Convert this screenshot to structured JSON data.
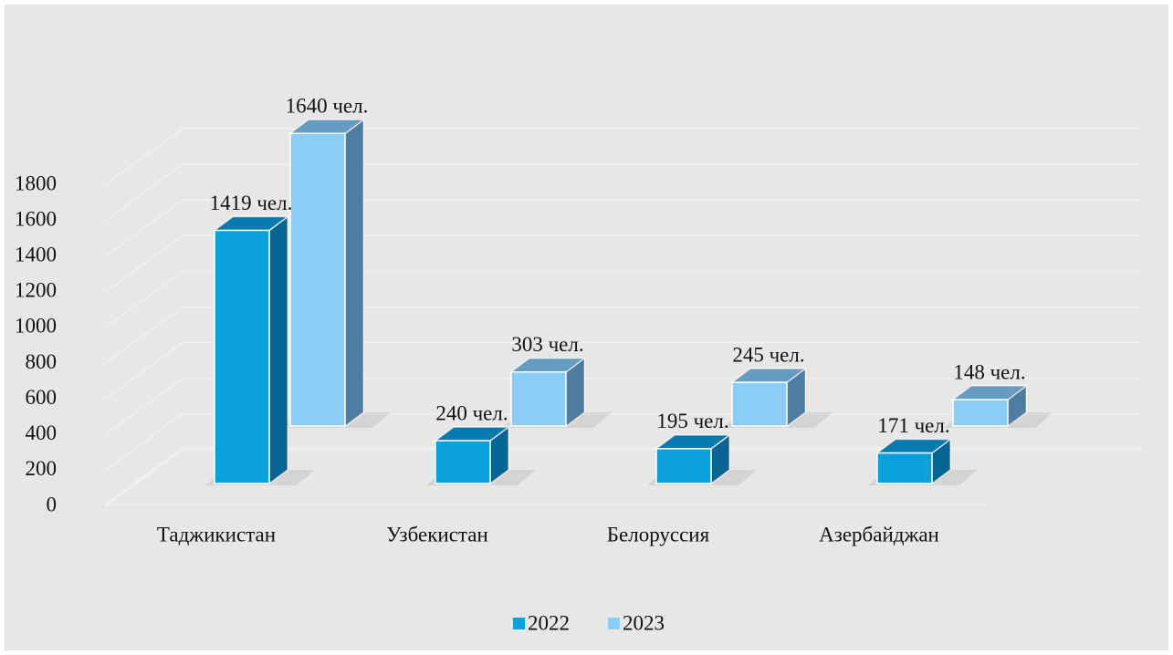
{
  "chart_data": {
    "type": "bar3d",
    "categories": [
      "Таджикистан",
      "Узбекистан",
      "Белоруссия",
      "Азербайджан"
    ],
    "series": [
      {
        "name": "2022",
        "color": "#0aa0dc",
        "values": [
          1419,
          240,
          195,
          171
        ],
        "value_labels": [
          "1419 чел.",
          "240 чел.",
          "195 чел.",
          "171 чел."
        ]
      },
      {
        "name": "2023",
        "color": "#8ccdf5",
        "values": [
          1640,
          303,
          245,
          148
        ],
        "value_labels": [
          "1640 чел.",
          "303 чел.",
          "245 чел.",
          "148 чел."
        ]
      }
    ],
    "ylim": [
      0,
      1800
    ],
    "yticks": [
      0,
      200,
      400,
      600,
      800,
      1000,
      1200,
      1400,
      1600,
      1800
    ],
    "grid": true,
    "legend": "bottom"
  }
}
